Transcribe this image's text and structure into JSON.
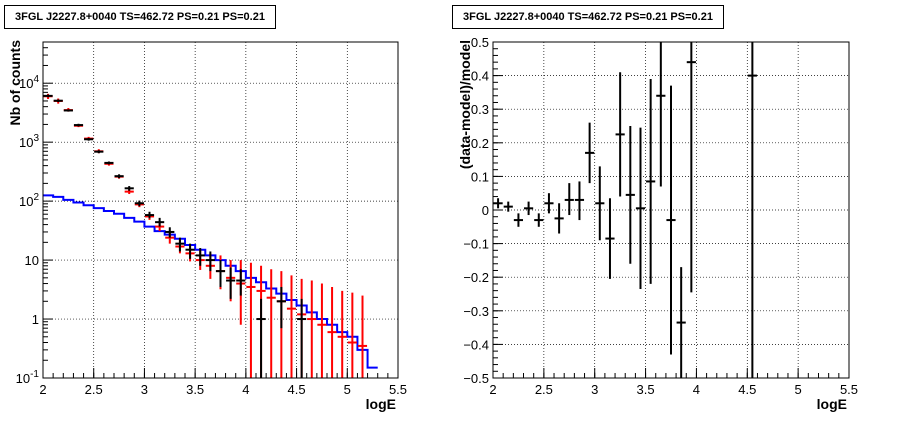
{
  "chart_data": [
    {
      "type": "line",
      "title": "3FGL J2227.8+0040 TS=462.72 PS=0.21 PS=0.21",
      "xlabel": "logE",
      "ylabel": "Nb of counts",
      "xlim": [
        2,
        5.5
      ],
      "ylim": [
        0.1,
        50000
      ],
      "yscale": "log",
      "grid": true,
      "x_ticks": [
        "2",
        "2.5",
        "3",
        "3.5",
        "4",
        "4.5",
        "5",
        "5.5"
      ],
      "y_ticks": [
        {
          "v": 0.1,
          "mant": "10",
          "exp": "-1"
        },
        {
          "v": 1,
          "mant": "1",
          "exp": ""
        },
        {
          "v": 10,
          "mant": "10",
          "exp": ""
        },
        {
          "v": 100,
          "mant": "10",
          "exp": "2"
        },
        {
          "v": 1000,
          "mant": "10",
          "exp": "3"
        },
        {
          "v": 10000,
          "mant": "10",
          "exp": "4"
        }
      ],
      "series": [
        {
          "kind": "step",
          "color": "#0000ff",
          "x": [
            2.0,
            2.1,
            2.2,
            2.3,
            2.4,
            2.5,
            2.6,
            2.7,
            2.8,
            2.9,
            3.0,
            3.1,
            3.2,
            3.3,
            3.4,
            3.5,
            3.6,
            3.7,
            3.8,
            3.9,
            4.0,
            4.1,
            4.2,
            4.3,
            4.4,
            4.5,
            4.6,
            4.7,
            4.8,
            4.9,
            5.0,
            5.1,
            5.2
          ],
          "values": [
            125,
            118,
            105,
            95,
            85,
            76,
            68,
            61,
            52,
            45,
            37,
            31,
            27,
            23,
            18,
            15,
            12,
            10,
            8,
            6.5,
            5,
            4.2,
            3.3,
            2.7,
            2.1,
            1.7,
            1.3,
            1.0,
            0.8,
            0.6,
            0.5,
            0.3,
            0.15
          ]
        },
        {
          "kind": "errorbar",
          "color": "#ff0000",
          "x": [
            2.05,
            2.15,
            2.25,
            2.35,
            2.45,
            2.55,
            2.65,
            2.75,
            2.85,
            2.95,
            3.05,
            3.15,
            3.25,
            3.35,
            3.45,
            3.55,
            3.65,
            3.75,
            3.85,
            3.95,
            4.05,
            4.15,
            4.25,
            4.35,
            4.45,
            4.55,
            4.65,
            4.75,
            4.85,
            4.95,
            5.05,
            5.15
          ],
          "values": [
            6000,
            5000,
            3500,
            1900,
            1150,
            700,
            430,
            260,
            145,
            88,
            55,
            37,
            24,
            17,
            13,
            10,
            8,
            6.5,
            5,
            4,
            3.5,
            3,
            2.3,
            2,
            1.5,
            1.2,
            1.0,
            0.8,
            0.6,
            0.5,
            0.4,
            0.35
          ],
          "err_lo": [
            5400,
            4500,
            3300,
            1800,
            1080,
            650,
            400,
            240,
            132,
            79,
            48,
            31,
            19,
            13,
            9.5,
            6.8,
            4.8,
            3.2,
            2,
            0.8,
            0.1,
            0.05,
            0.05,
            0.05,
            0.05,
            0.05,
            0.05,
            0.05,
            0.05,
            0.05,
            0.05,
            0.05
          ],
          "err_hi": [
            6600,
            5500,
            3800,
            2000,
            1230,
            760,
            460,
            280,
            160,
            97,
            63,
            44,
            30,
            22,
            18,
            15,
            13,
            12,
            10,
            10,
            9,
            8,
            7,
            6.5,
            5.5,
            4.8,
            4.5,
            4,
            3.5,
            3,
            2.8,
            2.5
          ]
        },
        {
          "kind": "errorbar",
          "color": "#000000",
          "x": [
            2.05,
            2.15,
            2.25,
            2.35,
            2.45,
            2.55,
            2.65,
            2.75,
            2.85,
            2.95,
            3.05,
            3.15,
            3.25,
            3.35,
            3.45,
            3.55,
            3.65,
            3.75,
            3.85,
            3.95,
            4.15,
            4.35,
            4.55
          ],
          "values": [
            6100,
            5050,
            3450,
            1950,
            1120,
            690,
            445,
            265,
            165,
            92,
            58,
            44,
            30,
            19,
            15,
            12,
            10,
            6.5,
            4.5,
            4.5,
            1,
            2,
            1
          ],
          "err_lo": [
            5800,
            4800,
            3300,
            1850,
            1060,
            650,
            420,
            245,
            150,
            82,
            51,
            37,
            24,
            14,
            10.5,
            8,
            6.5,
            3.5,
            2.2,
            2.5,
            0.1,
            0.7,
            0.1
          ],
          "err_hi": [
            6400,
            5300,
            3600,
            2050,
            1180,
            730,
            470,
            285,
            180,
            102,
            66,
            52,
            36,
            24,
            19,
            16,
            14,
            10,
            7.5,
            7,
            2.2,
            3.5,
            2.2
          ]
        }
      ]
    },
    {
      "type": "scatter",
      "title": "3FGL J2227.8+0040 TS=462.72 PS=0.21 PS=0.21",
      "xlabel": "logE",
      "ylabel": "(data-model)/model",
      "xlim": [
        2,
        5.5
      ],
      "ylim": [
        -0.5,
        0.5
      ],
      "grid": true,
      "x_ticks": [
        "2",
        "2.5",
        "3",
        "3.5",
        "4",
        "4.5",
        "5",
        "5.5"
      ],
      "y_ticks": [
        "−0.5",
        "−0.4",
        "−0.3",
        "−0.2",
        "−0.1",
        "0",
        "0.1",
        "0.2",
        "0.3",
        "0.4",
        "0.5"
      ],
      "series": [
        {
          "kind": "errorbar",
          "color": "#000000",
          "x": [
            2.05,
            2.15,
            2.25,
            2.35,
            2.45,
            2.55,
            2.65,
            2.75,
            2.85,
            2.95,
            3.05,
            3.15,
            3.25,
            3.35,
            3.45,
            3.55,
            3.65,
            3.75,
            3.85,
            3.95,
            4.55
          ],
          "values": [
            0.02,
            0.01,
            -0.03,
            0.005,
            -0.03,
            0.02,
            -0.025,
            0.03,
            0.03,
            0.17,
            0.02,
            -0.085,
            0.225,
            0.045,
            0.005,
            0.085,
            0.34,
            -0.03,
            -0.335,
            0.44,
            0.4
          ],
          "err_lo": [
            0.005,
            -0.005,
            -0.05,
            -0.015,
            -0.05,
            -0.01,
            -0.07,
            -0.015,
            -0.03,
            0.08,
            -0.09,
            -0.205,
            0.04,
            -0.16,
            -0.235,
            -0.22,
            0.07,
            -0.43,
            -0.5,
            -0.245,
            -0.5
          ],
          "err_hi": [
            0.035,
            0.025,
            -0.01,
            0.025,
            -0.01,
            0.05,
            0.02,
            0.08,
            0.085,
            0.26,
            0.13,
            0.035,
            0.41,
            0.25,
            0.245,
            0.39,
            0.5,
            0.37,
            -0.17,
            0.5,
            0.5
          ]
        }
      ]
    }
  ]
}
